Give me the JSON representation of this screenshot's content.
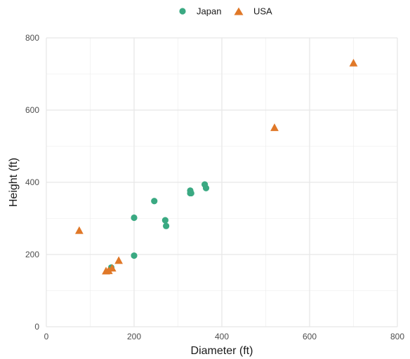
{
  "chart_data": {
    "type": "scatter",
    "title": "",
    "xlabel": "Diameter (ft)",
    "ylabel": "Height (ft)",
    "xlim": [
      0,
      800
    ],
    "ylim": [
      0,
      800
    ],
    "xticks": [
      "0",
      "200",
      "400",
      "600",
      "800"
    ],
    "yticks": [
      "0",
      "200",
      "400",
      "600",
      "800"
    ],
    "grid": true,
    "legend_position": "top",
    "series": [
      {
        "name": "Japan",
        "marker": "circle",
        "color": "#3aa982",
        "points": [
          {
            "x": 148,
            "y": 164
          },
          {
            "x": 200,
            "y": 197
          },
          {
            "x": 200,
            "y": 302
          },
          {
            "x": 246,
            "y": 348
          },
          {
            "x": 271,
            "y": 295
          },
          {
            "x": 273,
            "y": 279
          },
          {
            "x": 328,
            "y": 377
          },
          {
            "x": 328,
            "y": 370
          },
          {
            "x": 330,
            "y": 370
          },
          {
            "x": 361,
            "y": 394
          },
          {
            "x": 364,
            "y": 384
          }
        ]
      },
      {
        "name": "USA",
        "marker": "triangle",
        "color": "#e07828",
        "points": [
          {
            "x": 75,
            "y": 266
          },
          {
            "x": 136,
            "y": 154
          },
          {
            "x": 142,
            "y": 155
          },
          {
            "x": 150,
            "y": 162
          },
          {
            "x": 165,
            "y": 183
          },
          {
            "x": 520,
            "y": 551
          },
          {
            "x": 700,
            "y": 730
          }
        ]
      }
    ]
  }
}
